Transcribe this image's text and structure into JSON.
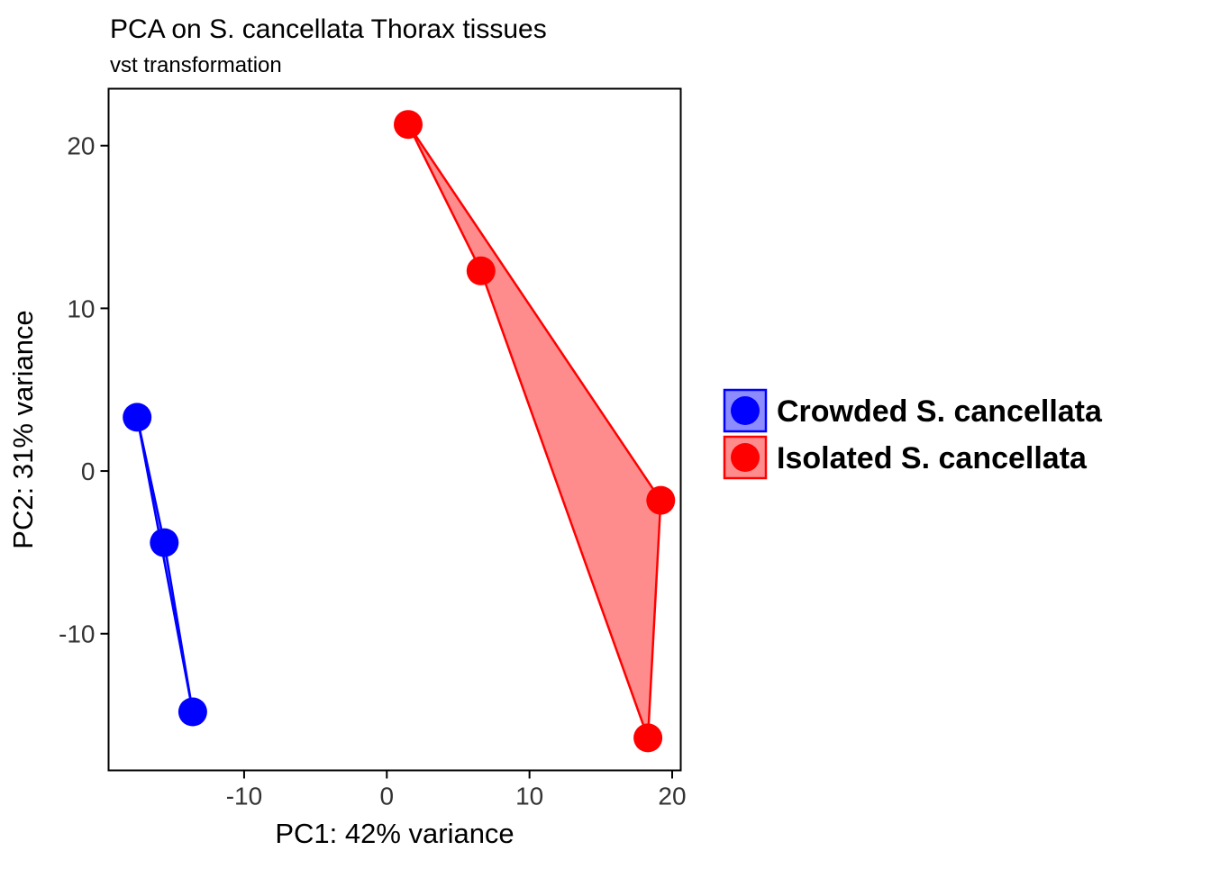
{
  "chart": {
    "title": "PCA on S. cancellata Thorax tissues",
    "subtitle": "vst transformation",
    "xlabel": "PC1: 42% variance",
    "ylabel": "PC2: 31% variance"
  },
  "legend": {
    "items": [
      {
        "label": "Crowded S. cancellata",
        "color": "#0000FF"
      },
      {
        "label": "Isolated S. cancellata",
        "color": "#FF0000"
      }
    ]
  },
  "chart_data": {
    "type": "scatter",
    "title": "PCA on S. cancellata Thorax tissues",
    "subtitle": "vst transformation",
    "xlabel": "PC1: 42% variance",
    "ylabel": "PC2: 31% variance",
    "xlim": [
      -19.5,
      20.6
    ],
    "ylim": [
      -18.4,
      23.5
    ],
    "x_ticks": [
      -10,
      0,
      10,
      20
    ],
    "y_ticks": [
      -10,
      0,
      10,
      20
    ],
    "grid": false,
    "panel_border": true,
    "legend_position": "right",
    "series": [
      {
        "name": "Crowded S. cancellata",
        "color": "#0000FF",
        "fill_opacity": 0.45,
        "points": [
          [
            -17.5,
            3.3
          ],
          [
            -15.6,
            -4.4
          ],
          [
            -13.6,
            -14.8
          ]
        ],
        "hull": [
          [
            -17.5,
            3.3
          ],
          [
            -15.6,
            -4.4
          ],
          [
            -13.6,
            -14.8
          ]
        ]
      },
      {
        "name": "Isolated S. cancellata",
        "color": "#FF0000",
        "fill_opacity": 0.45,
        "points": [
          [
            1.5,
            21.3
          ],
          [
            6.6,
            12.3
          ],
          [
            19.2,
            -1.8
          ],
          [
            18.3,
            -16.4
          ]
        ],
        "hull": [
          [
            1.5,
            21.3
          ],
          [
            19.2,
            -1.8
          ],
          [
            18.3,
            -16.4
          ],
          [
            6.6,
            12.3
          ]
        ]
      }
    ]
  }
}
